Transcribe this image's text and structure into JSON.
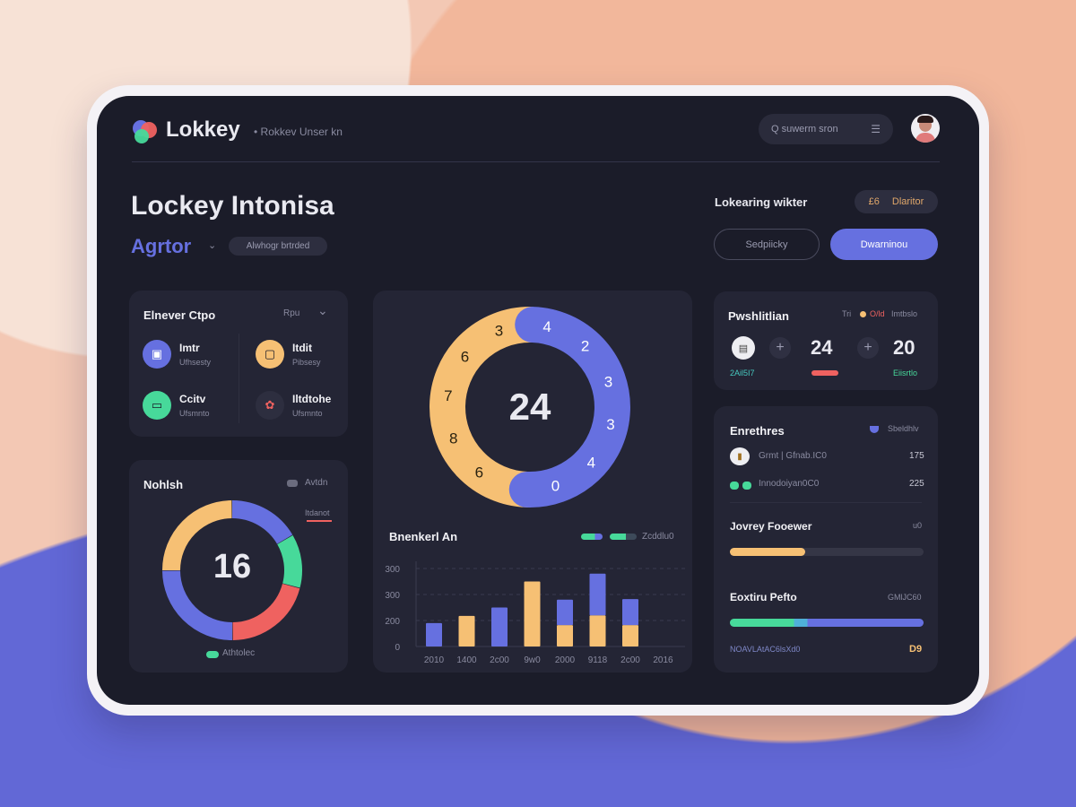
{
  "colors": {
    "orange": "#f6c074",
    "blue": "#6670e0",
    "green": "#47d99a",
    "red": "#ef6260",
    "screen": "#1b1c29",
    "card": "#242535"
  },
  "header": {
    "brand": "Lokkey",
    "subtitle": "• Rokkev Unser kn",
    "search_placeholder": "Q suwerm sron",
    "search_icon": "search-icon",
    "filter_icon": "filter-icon",
    "avatar": "user-avatar"
  },
  "page": {
    "title": "Lockey Intonisa",
    "subtitle": "Agrtor",
    "subtitle_pill": "Alwhogr brtrded",
    "right_label": "Lokearing wikter",
    "right_pill_num": "£6",
    "right_pill_text": "Dlaritor",
    "btn_secondary": "Sedpiicky",
    "btn_primary": "Dwarninou"
  },
  "categories_card": {
    "title": "Elnever Ctpo",
    "filter": "Rpu",
    "items": [
      {
        "name": "Imtr",
        "sub": "Ufhsesty",
        "color": "#6670e0",
        "icon": "image-icon"
      },
      {
        "name": "Itdit",
        "sub": "Pibsesy",
        "color": "#f6c074",
        "icon": "copy-icon"
      },
      {
        "name": "Ccitv",
        "sub": "Ufsmnto",
        "color": "#47d99a",
        "icon": "calendar-icon"
      },
      {
        "name": "Iltdtohe",
        "sub": "Ufsmnto",
        "color": "#2d2e3f",
        "icon": "gift-icon"
      }
    ]
  },
  "small_donut": {
    "title": "Nohlsh",
    "legend_label": "Avtdn",
    "side_label": "Itdanot",
    "center": "16",
    "footer_label": "Athtolec"
  },
  "big_donut": {
    "center": "24",
    "orange_labels": [
      "3",
      "6",
      "7",
      "8",
      "6"
    ],
    "blue_labels": [
      "4",
      "2",
      "3",
      "3",
      "4",
      "0"
    ]
  },
  "chart_data": {
    "type": "bar",
    "title": "Bnenkerl An",
    "legend_label": "Zcddlu0",
    "yticks": [
      "0",
      "200",
      "300",
      "300"
    ],
    "categories": [
      "2010",
      "1400",
      "2c00",
      "9w0",
      "2000",
      "9118",
      "2c00",
      "2016"
    ],
    "series": [
      {
        "color": "#f6c074",
        "values": [
          0,
          235,
          0,
          500,
          165,
          240,
          165,
          0
        ]
      },
      {
        "color": "#6670e0",
        "values": [
          180,
          0,
          300,
          0,
          195,
          320,
          200,
          0
        ]
      }
    ],
    "ylim": [
      0,
      600
    ],
    "grid": true
  },
  "stats_card": {
    "title": "Pwshlitlian",
    "meta1": "Tri",
    "meta2": "O/ld",
    "meta3": "Imtbslo",
    "left_label": "2Ail5I7",
    "value1": "24",
    "value2": "20",
    "right_label": "Eiisrtlo"
  },
  "list_card": {
    "title": "Enrethres",
    "meta": "Sbeldhlv",
    "rows": [
      {
        "label": "Grmt | Gfnab.IC0",
        "value": "175"
      },
      {
        "label": "Innodoiyan0C0",
        "value": "225"
      }
    ],
    "progress1": {
      "title": "Jovrey Fooewer",
      "meta": "u0",
      "fraction": 0.39
    },
    "progress2": {
      "title": "Eoxtiru Pefto",
      "meta": "GMlJC60",
      "green_fraction": 0.33,
      "fraction": 1.0
    },
    "footer_label": "NOAVLAtAC6lsXd0",
    "footer_value": "D9"
  }
}
